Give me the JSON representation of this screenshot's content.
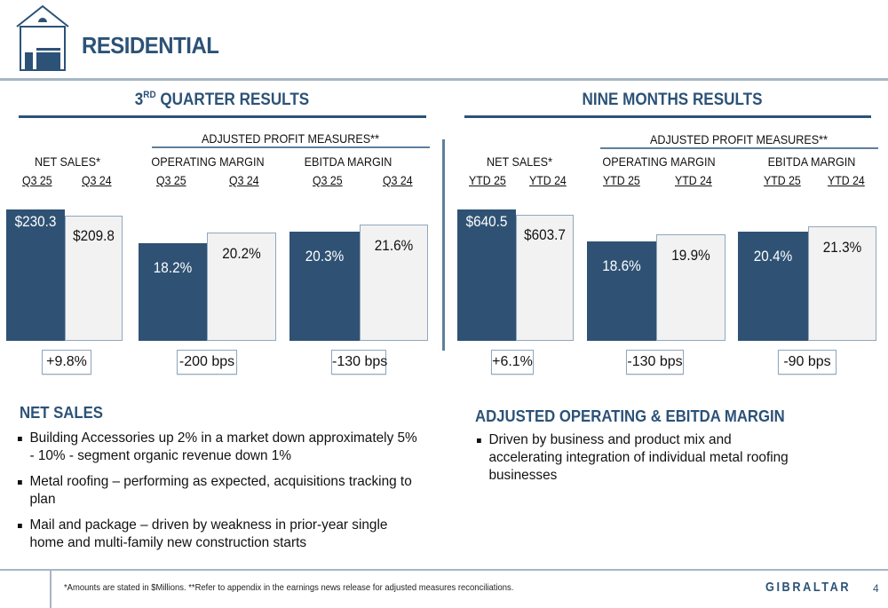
{
  "header": {
    "title": "RESIDENTIAL",
    "icon": "house-icon"
  },
  "colors": {
    "brand": "#2c5277",
    "current_bar": "#2f5274",
    "prior_bar": "#f2f2f2",
    "rule": "#a7b6c4"
  },
  "sections": [
    {
      "title_main": "3",
      "title_sup": "RD",
      "title_rest": " QUARTER RESULTS",
      "adjusted_label": "ADJUSTED PROFIT MEASURES**",
      "groups": [
        {
          "label": "NET SALES*",
          "periods": [
            "Q3 25",
            "Q3 24"
          ],
          "values": [
            "$230.3",
            "$209.8"
          ],
          "change": "+9.8%"
        },
        {
          "label": "OPERATING MARGIN",
          "periods": [
            "Q3 25",
            "Q3 24"
          ],
          "values": [
            "18.2%",
            "20.2%"
          ],
          "change": "-200 bps"
        },
        {
          "label": "EBITDA MARGIN",
          "periods": [
            "Q3 25",
            "Q3 24"
          ],
          "values": [
            "20.3%",
            "21.6%"
          ],
          "change": "-130 bps"
        }
      ]
    },
    {
      "title_main": "NINE MONTHS RESULTS",
      "title_sup": "",
      "title_rest": "",
      "adjusted_label": "ADJUSTED PROFIT MEASURES**",
      "groups": [
        {
          "label": "NET SALES*",
          "periods": [
            "YTD 25",
            "YTD 24"
          ],
          "values": [
            "$640.5",
            "$603.7"
          ],
          "change": "+6.1%"
        },
        {
          "label": "OPERATING MARGIN",
          "periods": [
            "YTD 25",
            "YTD 24"
          ],
          "values": [
            "18.6%",
            "19.9%"
          ],
          "change": "-130 bps"
        },
        {
          "label": "EBITDA MARGIN",
          "periods": [
            "YTD 25",
            "YTD 24"
          ],
          "values": [
            "20.4%",
            "21.3%"
          ],
          "change": "-90 bps"
        }
      ]
    }
  ],
  "chart_data": [
    {
      "type": "bar",
      "title": "3RD QUARTER RESULTS - NET SALES*",
      "categories": [
        "Q3 25",
        "Q3 24"
      ],
      "values": [
        230.3,
        209.8
      ],
      "value_labels": [
        "$230.3",
        "$209.8"
      ],
      "change": "+9.8%",
      "unit": "$M"
    },
    {
      "type": "bar",
      "title": "3RD QUARTER RESULTS - OPERATING MARGIN",
      "categories": [
        "Q3 25",
        "Q3 24"
      ],
      "values": [
        18.2,
        20.2
      ],
      "value_labels": [
        "18.2%",
        "20.2%"
      ],
      "change": "-200 bps",
      "unit": "%"
    },
    {
      "type": "bar",
      "title": "3RD QUARTER RESULTS - EBITDA MARGIN",
      "categories": [
        "Q3 25",
        "Q3 24"
      ],
      "values": [
        20.3,
        21.6
      ],
      "value_labels": [
        "20.3%",
        "21.6%"
      ],
      "change": "-130 bps",
      "unit": "%"
    },
    {
      "type": "bar",
      "title": "NINE MONTHS RESULTS - NET SALES*",
      "categories": [
        "YTD 25",
        "YTD 24"
      ],
      "values": [
        640.5,
        603.7
      ],
      "value_labels": [
        "$640.5",
        "$603.7"
      ],
      "change": "+6.1%",
      "unit": "$M"
    },
    {
      "type": "bar",
      "title": "NINE MONTHS RESULTS - OPERATING MARGIN",
      "categories": [
        "YTD 25",
        "YTD 24"
      ],
      "values": [
        18.6,
        19.9
      ],
      "value_labels": [
        "18.6%",
        "19.9%"
      ],
      "change": "-130 bps",
      "unit": "%"
    },
    {
      "type": "bar",
      "title": "NINE MONTHS RESULTS - EBITDA MARGIN",
      "categories": [
        "YTD 25",
        "YTD 24"
      ],
      "values": [
        20.4,
        21.3
      ],
      "value_labels": [
        "20.4%",
        "21.3%"
      ],
      "change": "-90 bps",
      "unit": "%"
    }
  ],
  "net_sales": {
    "heading": "NET SALES",
    "bullets": [
      "Building Accessories up 2% in a market down approximately 5% - 10% - segment organic revenue down 1%",
      "Metal roofing – performing as expected, acquisitions tracking to plan",
      "Mail and package – driven by weakness in prior-year single home and multi-family new construction starts"
    ]
  },
  "margin": {
    "heading": "ADJUSTED OPERATING & EBITDA MARGIN",
    "bullets": [
      "Driven by business and product mix and accelerating integration of individual metal roofing businesses"
    ]
  },
  "footer": {
    "note": "*Amounts are stated in $Millions.  **Refer to appendix in the earnings news release for adjusted measures reconciliations.",
    "brand": "GIBRALTAR",
    "page": "4"
  }
}
